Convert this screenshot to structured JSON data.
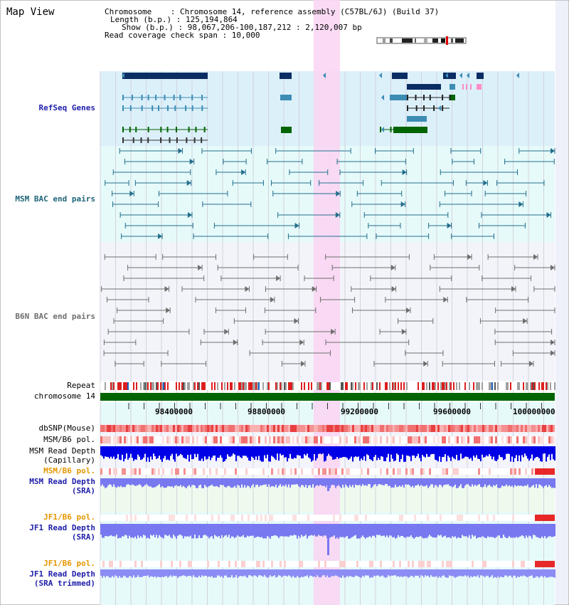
{
  "view": {
    "title": "Map View",
    "info_lines": [
      "Chromosome    : Chromosome 14, reference assembly (C57BL/6J) (Build 37)",
      "Length (b.p.) : 125,194,864",
      "Show (b.p.) : 98,067,206-100,187,212 : 2,120,007 bp",
      "Read coverage check span : 10,000"
    ]
  },
  "tracks": {
    "refseq": "RefSeq Genes",
    "msm_bac": "MSM BAC end pairs",
    "b6n_bac": "B6N BAC end pairs",
    "repeat": "Repeat",
    "chromosome": "chromosome 14",
    "dbsnp": "dbSNP(Mouse)",
    "msm_b6_pol_1": "MSM/B6 pol.",
    "msm_depth_cap_1": "MSM Read Depth",
    "msm_depth_cap_2": "(Capillary)",
    "msm_b6_pol_2": "MSM/B6 pol.",
    "msm_depth_sra_1": "MSM Read Depth",
    "msm_depth_sra_2": "(SRA)",
    "jf1_b6_pol_1": "JF1/B6 pol.",
    "jf1_depth_sra_1": "JF1 Read Depth",
    "jf1_depth_sra_2": "(SRA)",
    "jf1_b6_pol_2": "JF1/B6 pol.",
    "jf1_depth_trim_1": "JF1 Read Depth",
    "jf1_depth_trim_2": "(SRA trimmed)"
  },
  "axis": {
    "ticks": [
      "98400000",
      "98800000",
      "99200000",
      "99600000",
      "100000000"
    ]
  },
  "colors": {
    "refseq_bg": "#dcf0fa",
    "msm_bg": "#e6fafa",
    "b6n_bg": "#f3f4fa",
    "highlight": "#f9d6f3",
    "gene_dark": "#0a2d64",
    "gene_mid": "#3c8cb4",
    "gene_green": "#006400",
    "msm_pair": "#236e8c",
    "b6n_pair": "#6e6e6e",
    "label_blue": "#1e1eaa",
    "label_teal": "#1e6478",
    "label_orange": "#e69600",
    "depth_blue": "#0000e6",
    "depth_light": "#7878f0"
  }
}
